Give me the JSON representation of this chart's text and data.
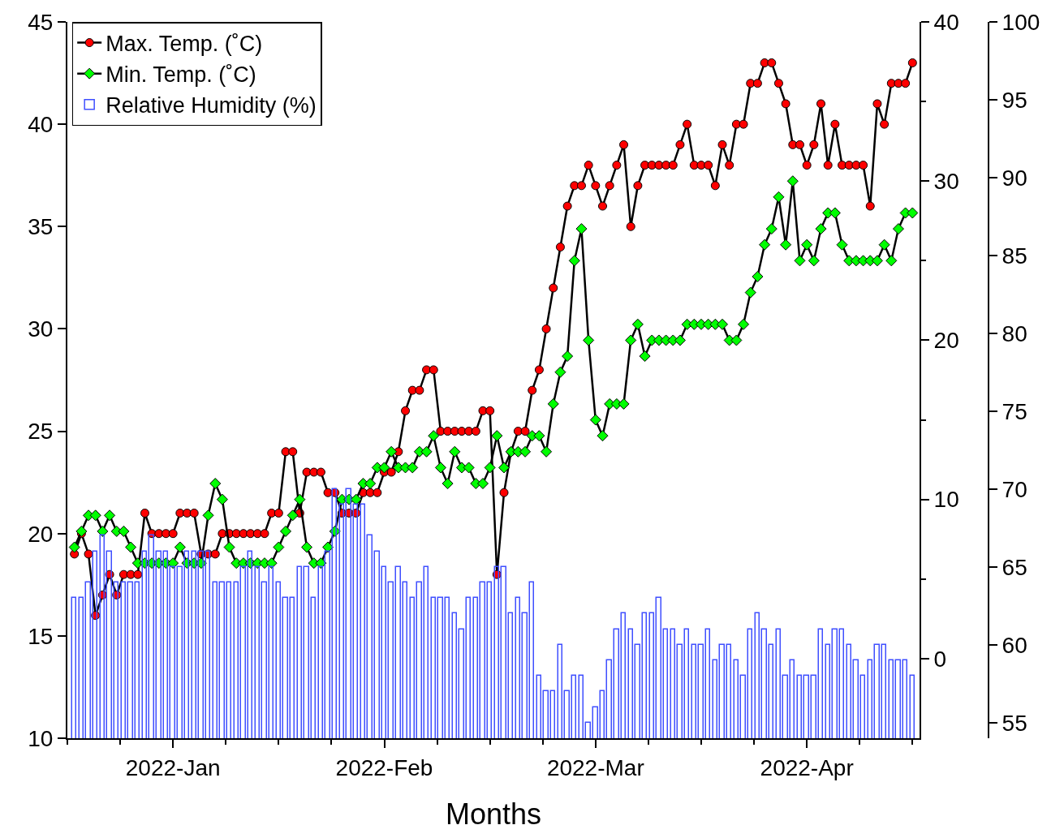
{
  "chart_data": {
    "type": "line",
    "xlabel": "Months",
    "legend": "top left",
    "x": [
      "2022-01-01",
      "2022-01-02",
      "2022-01-03",
      "2022-01-04",
      "2022-01-05",
      "2022-01-06",
      "2022-01-07",
      "2022-01-08",
      "2022-01-09",
      "2022-01-10",
      "2022-01-11",
      "2022-01-12",
      "2022-01-13",
      "2022-01-14",
      "2022-01-15",
      "2022-01-16",
      "2022-01-17",
      "2022-01-18",
      "2022-01-19",
      "2022-01-20",
      "2022-01-21",
      "2022-01-22",
      "2022-01-23",
      "2022-01-24",
      "2022-01-25",
      "2022-01-26",
      "2022-01-27",
      "2022-01-28",
      "2022-01-29",
      "2022-01-30",
      "2022-01-31",
      "2022-02-01",
      "2022-02-02",
      "2022-02-03",
      "2022-02-04",
      "2022-02-05",
      "2022-02-06",
      "2022-02-07",
      "2022-02-08",
      "2022-02-09",
      "2022-02-10",
      "2022-02-11",
      "2022-02-12",
      "2022-02-13",
      "2022-02-14",
      "2022-02-15",
      "2022-02-16",
      "2022-02-17",
      "2022-02-18",
      "2022-02-19",
      "2022-02-20",
      "2022-02-21",
      "2022-02-22",
      "2022-02-23",
      "2022-02-24",
      "2022-02-25",
      "2022-02-26",
      "2022-02-27",
      "2022-02-28",
      "2022-03-01",
      "2022-03-02",
      "2022-03-03",
      "2022-03-04",
      "2022-03-05",
      "2022-03-06",
      "2022-03-07",
      "2022-03-08",
      "2022-03-09",
      "2022-03-10",
      "2022-03-11",
      "2022-03-12",
      "2022-03-13",
      "2022-03-14",
      "2022-03-15",
      "2022-03-16",
      "2022-03-17",
      "2022-03-18",
      "2022-03-19",
      "2022-03-20",
      "2022-03-21",
      "2022-03-22",
      "2022-03-23",
      "2022-03-24",
      "2022-03-25",
      "2022-03-26",
      "2022-03-27",
      "2022-03-28",
      "2022-03-29",
      "2022-03-30",
      "2022-03-31",
      "2022-04-01",
      "2022-04-02",
      "2022-04-03",
      "2022-04-04",
      "2022-04-05",
      "2022-04-06",
      "2022-04-07",
      "2022-04-08",
      "2022-04-09",
      "2022-04-10",
      "2022-04-11",
      "2022-04-12",
      "2022-04-13",
      "2022-04-14",
      "2022-04-15",
      "2022-04-16",
      "2022-04-17",
      "2022-04-18",
      "2022-04-19",
      "2022-04-20",
      "2022-04-21",
      "2022-04-22",
      "2022-04-23",
      "2022-04-24",
      "2022-04-25",
      "2022-04-26",
      "2022-04-27",
      "2022-04-28",
      "2022-04-29",
      "2022-04-30"
    ],
    "xlim": [
      "2021-12-31",
      "2022-05-01"
    ],
    "xticks": [
      {
        "value": "2021-12-31",
        "label": null
      },
      {
        "value": "2022-01-07T12:00",
        "label": null
      },
      {
        "value": "2022-01-15",
        "label": "2022-Jan"
      },
      {
        "value": "2022-01-22T12:00",
        "label": null
      },
      {
        "value": "2022-01-30",
        "label": null
      },
      {
        "value": "2022-02-06T12:00",
        "label": null
      },
      {
        "value": "2022-02-14",
        "label": "2022-Feb"
      },
      {
        "value": "2022-02-21T12:00",
        "label": null
      },
      {
        "value": "2022-03-01",
        "label": null
      },
      {
        "value": "2022-03-08T12:00",
        "label": null
      },
      {
        "value": "2022-03-16",
        "label": "2022-Mar"
      },
      {
        "value": "2022-03-23T12:00",
        "label": null
      },
      {
        "value": "2022-03-31",
        "label": null
      },
      {
        "value": "2022-04-07T12:00",
        "label": null
      },
      {
        "value": "2022-04-15",
        "label": "2022-Apr"
      },
      {
        "value": "2022-04-22T12:00",
        "label": null
      },
      {
        "value": "2022-04-30",
        "label": null
      }
    ],
    "ylim": [
      10,
      45
    ],
    "yticks": [
      10,
      15,
      20,
      25,
      30,
      35,
      40,
      45
    ],
    "y2lim": [
      -5,
      40
    ],
    "y2ticks": [
      0,
      {
        "value": 5,
        "label": null
      },
      10,
      {
        "value": 15,
        "label": null
      },
      20,
      {
        "value": 25,
        "label": null
      },
      30,
      {
        "value": 35,
        "label": null
      },
      40
    ],
    "y3lim": [
      54,
      100
    ],
    "y3ticks": [
      55,
      60,
      65,
      70,
      75,
      80,
      85,
      90,
      95,
      100
    ],
    "series": [
      {
        "name": "Max. Temp. (˚C)",
        "axis": "y",
        "color": "#ff0000",
        "marker": "circle",
        "line_style": "solid",
        "values": [
          19,
          20,
          19,
          16,
          17,
          18,
          17,
          18,
          18,
          18,
          21,
          20,
          20,
          20,
          20,
          21,
          21,
          21,
          19,
          19,
          19,
          20,
          20,
          20,
          20,
          20,
          20,
          20,
          21,
          21,
          24,
          24,
          21,
          23,
          23,
          23,
          22,
          22,
          21,
          21,
          21,
          22,
          22,
          22,
          23,
          23,
          24,
          26,
          27,
          27,
          28,
          28,
          25,
          25,
          25,
          25,
          25,
          25,
          26,
          26,
          18,
          22,
          24,
          25,
          25,
          27,
          28,
          30,
          32,
          34,
          36,
          37,
          37,
          38,
          37,
          36,
          37,
          38,
          39,
          35,
          37,
          38,
          38,
          38,
          38,
          38,
          39,
          40,
          38,
          38,
          38,
          37,
          39,
          38,
          40,
          40,
          42,
          42,
          43,
          43,
          42,
          41,
          39,
          39,
          38,
          39,
          41,
          38,
          40,
          38,
          38,
          38,
          38,
          36,
          41,
          40,
          42,
          42,
          42,
          43
        ]
      },
      {
        "name": "Min. Temp. (˚C)",
        "axis": "y2",
        "color": "#00ff00",
        "marker": "diamond",
        "line_style": "solid",
        "values": [
          7,
          8,
          9,
          9,
          8,
          9,
          8,
          8,
          7,
          6,
          6,
          6,
          6,
          6,
          6,
          7,
          6,
          6,
          6,
          9,
          11,
          10,
          7,
          6,
          6,
          6,
          6,
          6,
          6,
          7,
          8,
          9,
          10,
          7,
          6,
          6,
          7,
          8,
          10,
          10,
          10,
          11,
          11,
          12,
          12,
          13,
          12,
          12,
          12,
          13,
          13,
          14,
          12,
          11,
          13,
          12,
          12,
          11,
          11,
          12,
          14,
          12,
          13,
          13,
          13,
          14,
          14,
          13,
          16,
          18,
          19,
          25,
          27,
          20,
          15,
          14,
          16,
          16,
          16,
          20,
          21,
          19,
          20,
          20,
          20,
          20,
          20,
          21,
          21,
          21,
          21,
          21,
          21,
          20,
          20,
          21,
          23,
          24,
          26,
          27,
          29,
          26,
          30,
          25,
          26,
          25,
          27,
          28,
          28,
          26,
          25,
          25,
          25,
          25,
          25,
          26,
          25,
          27,
          28,
          28
        ]
      },
      {
        "name": "Relative Humidity (%)",
        "type": "bar",
        "axis": "y3",
        "color": "#3f4fff",
        "values": [
          63,
          63,
          64,
          66,
          67,
          66,
          64,
          64,
          64,
          64,
          66,
          67,
          66,
          66,
          65,
          65,
          66,
          66,
          66,
          66,
          64,
          64,
          64,
          64,
          65,
          66,
          65,
          64,
          65,
          64,
          63,
          63,
          65,
          65,
          63,
          65,
          66,
          70,
          69,
          70,
          69,
          69,
          67,
          66,
          65,
          64,
          65,
          64,
          63,
          64,
          65,
          63,
          63,
          63,
          62,
          61,
          63,
          63,
          64,
          64,
          65,
          65,
          62,
          63,
          62,
          64,
          58,
          57,
          57,
          60,
          57,
          58,
          58,
          55,
          56,
          57,
          59,
          61,
          62,
          61,
          60,
          62,
          62,
          63,
          61,
          61,
          60,
          61,
          60,
          60,
          61,
          59,
          60,
          60,
          59,
          58,
          61,
          62,
          61,
          60,
          61,
          58,
          59,
          58,
          58,
          58,
          61,
          60,
          61,
          61,
          60,
          59,
          58,
          59,
          60,
          60,
          59,
          59,
          59,
          58
        ]
      }
    ]
  }
}
